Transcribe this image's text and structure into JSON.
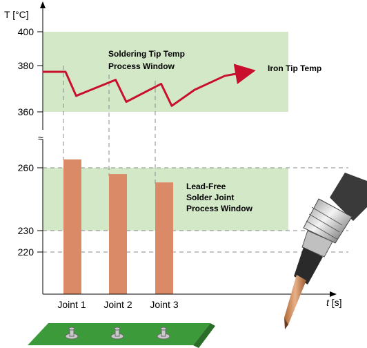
{
  "chart_data": {
    "type": "bar",
    "y_label": "T [°C]",
    "x_label_var": "t",
    "x_label_unit": " [s]",
    "y_ticks_upper": [
      400,
      380,
      360
    ],
    "y_ticks_lower": [
      260,
      230,
      220
    ],
    "axis_break": "≈",
    "categories": [
      "Joint 1",
      "Joint 2",
      "Joint 3"
    ],
    "values": [
      264,
      257,
      253
    ],
    "iron_tip_temp": {
      "name": "Iron Tip Temp",
      "points": [
        [
          0,
          380
        ],
        [
          0.15,
          380
        ],
        [
          0.22,
          368
        ],
        [
          0.48,
          376
        ],
        [
          0.55,
          365
        ],
        [
          0.78,
          374
        ],
        [
          0.85,
          363
        ],
        [
          1.0,
          371
        ],
        [
          1.2,
          378
        ],
        [
          1.35,
          380
        ]
      ]
    },
    "tip_window": {
      "label_line1": "Soldering Tip Temp",
      "label_line2": "Process Window",
      "range": [
        360,
        400
      ],
      "color": "#d3e8c7"
    },
    "joint_window": {
      "label_line1": "Lead-Free",
      "label_line2": "Solder Joint",
      "label_line3": "Process Window",
      "range": [
        230,
        260
      ],
      "color": "#d3e8c7"
    },
    "colors": {
      "bar": "#db8a68",
      "line": "#c8102e",
      "board": "#3d9a3a"
    }
  }
}
